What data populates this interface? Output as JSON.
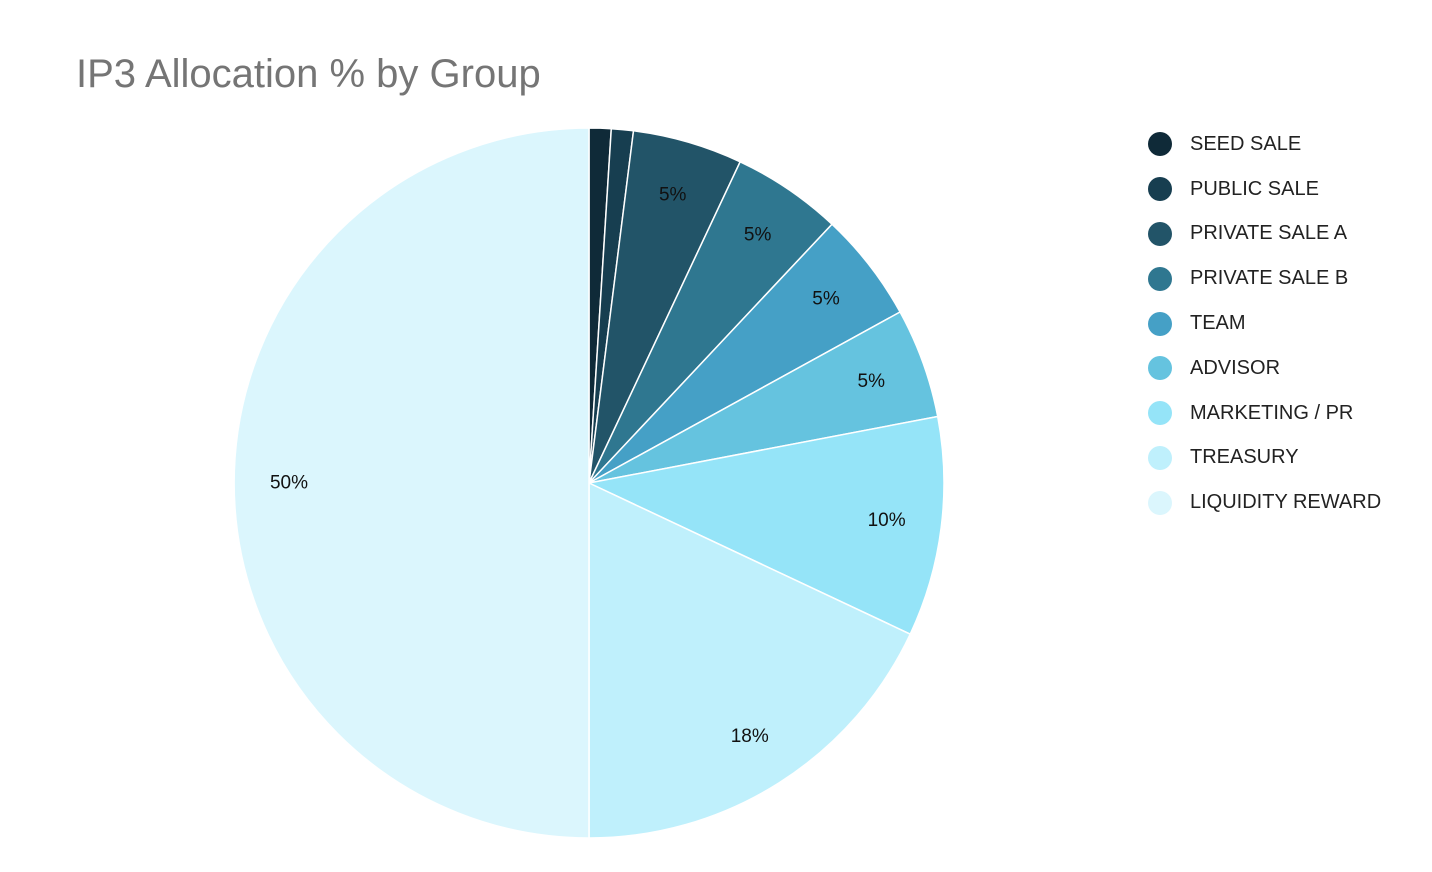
{
  "chart_data": {
    "type": "pie",
    "title": "IP3 Allocation % by Group",
    "categories": [
      "SEED SALE",
      "PUBLIC SALE",
      "PRIVATE SALE A",
      "PRIVATE SALE B",
      "TEAM",
      "ADVISOR",
      "MARKETING / PR",
      "TREASURY",
      "LIQUIDITY REWARD"
    ],
    "values": [
      1,
      1,
      5,
      5,
      5,
      5,
      10,
      18,
      50
    ],
    "labels": [
      "",
      "",
      "5%",
      "5%",
      "5%",
      "5%",
      "10%",
      "18%",
      "50%"
    ],
    "colors": [
      "#0f2a38",
      "#173e50",
      "#225468",
      "#2f7790",
      "#45a0c6",
      "#65c3df",
      "#95e4f8",
      "#bff0fc",
      "#dbf6fd"
    ],
    "legend_position": "right"
  }
}
